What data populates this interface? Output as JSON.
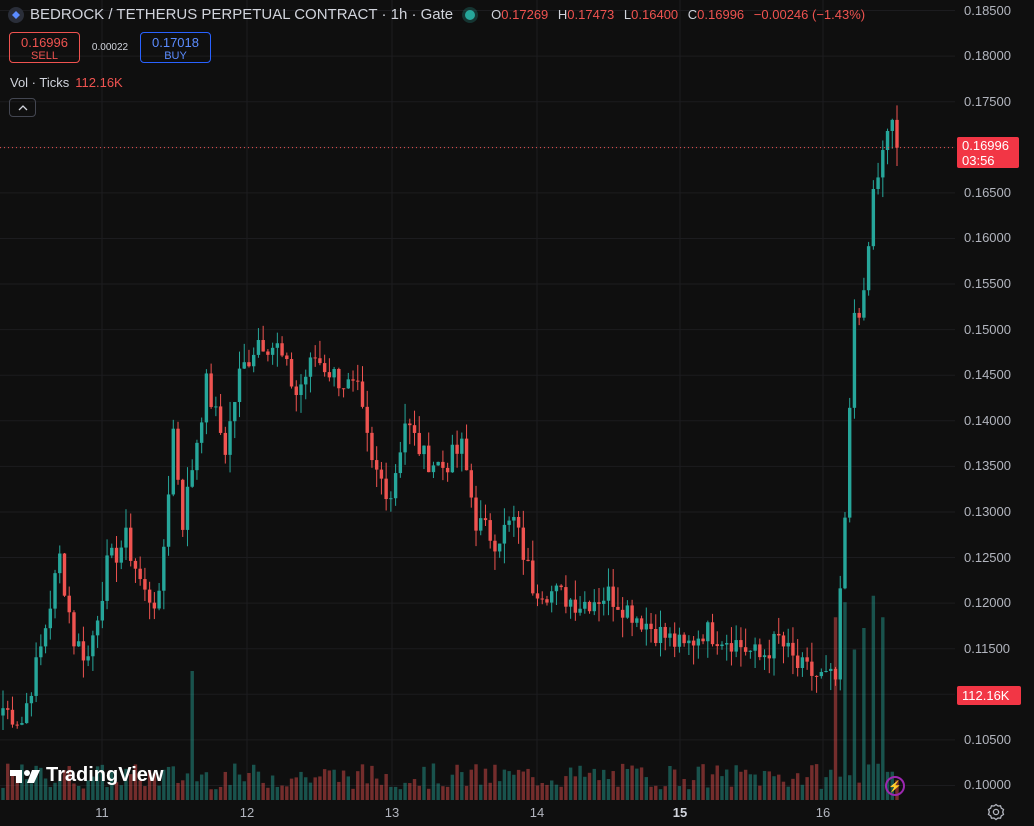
{
  "header": {
    "title": "BEDROCK / TETHERUS PERPETUAL CONTRACT · 1h · Gate",
    "ohlc": {
      "o_label": "O",
      "o": "0.17269",
      "h_label": "H",
      "h": "0.17473",
      "l_label": "L",
      "l": "0.16400",
      "c_label": "C",
      "c": "0.16996",
      "change": "−0.00246 (−1.43%)"
    }
  },
  "trade": {
    "sell_price": "0.16996",
    "sell_label": "SELL",
    "spread": "0.00022",
    "buy_price": "0.17018",
    "buy_label": "BUY"
  },
  "volume_legend": {
    "label": "Vol · Ticks",
    "value": "112.16K"
  },
  "price_axis": [
    "0.18500",
    "0.18000",
    "0.17500",
    "0.17000",
    "0.16500",
    "0.16000",
    "0.15500",
    "0.15000",
    "0.14500",
    "0.14000",
    "0.13500",
    "0.13000",
    "0.12500",
    "0.12000",
    "0.11500",
    "0.11000",
    "0.10500",
    "0.10000"
  ],
  "last_price": {
    "price": "0.16996",
    "countdown": "03:56"
  },
  "volume_tag": "112.16K",
  "time_axis": [
    "11",
    "12",
    "13",
    "14",
    "15",
    "16"
  ],
  "watermark": "TradingView",
  "colors": {
    "up": "#26a69a",
    "down": "#ef5350",
    "background": "#0f0f0f",
    "grid": "#1c1c1f",
    "tag": "#f23645"
  },
  "icons": {
    "symbol": "bedrock-logo-icon",
    "status": "market-open-dot-icon",
    "collapse": "chevron-up-icon",
    "bolt": "lightning-icon",
    "settings": "gear-icon"
  },
  "chart_data": {
    "type": "candlestick",
    "title": "BEDROCK / TETHERUS PERPETUAL CONTRACT · 1h · Gate",
    "interval": "1h",
    "ylim": [
      0.0995,
      0.1855
    ],
    "price_anchors": [
      [
        0,
        0.1085
      ],
      [
        4,
        0.107
      ],
      [
        8,
        0.115
      ],
      [
        12,
        0.125
      ],
      [
        15,
        0.116
      ],
      [
        18,
        0.114
      ],
      [
        22,
        0.124
      ],
      [
        26,
        0.127
      ],
      [
        30,
        0.121
      ],
      [
        33,
        0.12
      ],
      [
        36,
        0.139
      ],
      [
        38,
        0.129
      ],
      [
        43,
        0.144
      ],
      [
        47,
        0.137
      ],
      [
        50,
        0.145
      ],
      [
        54,
        0.149
      ],
      [
        58,
        0.148
      ],
      [
        62,
        0.143
      ],
      [
        66,
        0.147
      ],
      [
        70,
        0.145
      ],
      [
        75,
        0.143
      ],
      [
        78,
        0.135
      ],
      [
        82,
        0.132
      ],
      [
        85,
        0.14
      ],
      [
        89,
        0.136
      ],
      [
        93,
        0.135
      ],
      [
        97,
        0.137
      ],
      [
        100,
        0.129
      ],
      [
        104,
        0.127
      ],
      [
        108,
        0.129
      ],
      [
        112,
        0.122
      ],
      [
        117,
        0.121
      ],
      [
        122,
        0.12
      ],
      [
        128,
        0.121
      ],
      [
        133,
        0.119
      ],
      [
        138,
        0.117
      ],
      [
        144,
        0.115
      ],
      [
        148,
        0.117
      ],
      [
        154,
        0.116
      ],
      [
        160,
        0.114
      ],
      [
        164,
        0.116
      ],
      [
        168,
        0.113
      ],
      [
        172,
        0.112
      ],
      [
        176,
        0.1115
      ],
      [
        178,
        0.129
      ],
      [
        180,
        0.152
      ],
      [
        182,
        0.153
      ],
      [
        184,
        0.165
      ],
      [
        186,
        0.169
      ],
      [
        188,
        0.173
      ],
      [
        189,
        0.17
      ]
    ],
    "candle_count": 190,
    "volume": {
      "name": "Vol · Ticks",
      "last": "112.16K",
      "spikes": [
        [
          40,
          0.6
        ],
        [
          176,
          0.85
        ],
        [
          178,
          0.92
        ],
        [
          180,
          0.7
        ],
        [
          182,
          0.8
        ],
        [
          184,
          0.95
        ],
        [
          186,
          0.85
        ]
      ]
    },
    "last_price": 0.16996,
    "x_labels": [
      "11",
      "12",
      "13",
      "14",
      "15",
      "16"
    ],
    "grid": true
  }
}
